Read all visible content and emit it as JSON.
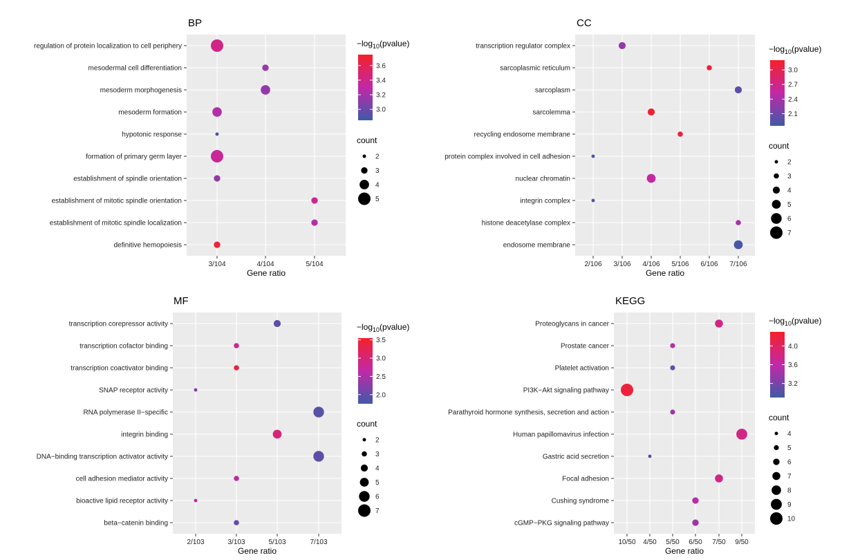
{
  "chart_data": [
    {
      "type": "scatter",
      "title": "BP",
      "xlabel": "Gene ratio",
      "x_categories": [
        "3/104",
        "4/104",
        "5/104"
      ],
      "y_categories": [
        "regulation of protein localization to cell periphery",
        "mesodermal cell differentiation",
        "mesoderm morphogenesis",
        "mesoderm formation",
        "hypotonic response",
        "formation of primary germ layer",
        "establishment of spindle orientation",
        "establishment of mitotic spindle orientation",
        "establishment of mitotic spindle localization",
        "definitive hemopoiesis"
      ],
      "points": [
        {
          "term": "regulation of protein localization to cell periphery",
          "x": "3/104",
          "count": 5,
          "value": 3.42
        },
        {
          "term": "mesodermal cell differentiation",
          "x": "4/104",
          "count": 3,
          "value": 3.15
        },
        {
          "term": "mesoderm morphogenesis",
          "x": "4/104",
          "count": 4,
          "value": 3.15
        },
        {
          "term": "mesoderm formation",
          "x": "3/104",
          "count": 4,
          "value": 3.25
        },
        {
          "term": "hypotonic response",
          "x": "3/104",
          "count": 2,
          "value": 2.9
        },
        {
          "term": "formation of primary germ layer",
          "x": "3/104",
          "count": 5,
          "value": 3.35
        },
        {
          "term": "establishment of spindle orientation",
          "x": "3/104",
          "count": 3,
          "value": 3.15
        },
        {
          "term": "establishment of mitotic spindle orientation",
          "x": "5/104",
          "count": 3,
          "value": 3.4
        },
        {
          "term": "establishment of mitotic spindle localization",
          "x": "5/104",
          "count": 3,
          "value": 3.25
        },
        {
          "term": "definitive hemopoiesis",
          "x": "3/104",
          "count": 3,
          "value": 3.7
        }
      ],
      "color_legend": {
        "title_pre": "−log",
        "title_sub": "10",
        "title_post": "(pvalue)",
        "min": 2.85,
        "max": 3.75,
        "ticks": [
          3.6,
          3.4,
          3.2,
          3.0
        ],
        "tick_labels": [
          "3.6",
          "3.4",
          "3.2",
          "3.0"
        ]
      },
      "size_legend": {
        "title": "count",
        "values": [
          2,
          3,
          4,
          5
        ],
        "labels": [
          "2",
          "3",
          "4",
          "5"
        ]
      },
      "colors": {
        "low": "#3f5aa8",
        "mid": "#c228a8",
        "high": "#f5202a"
      },
      "grid": true
    },
    {
      "type": "scatter",
      "title": "CC",
      "xlabel": "Gene ratio",
      "x_categories": [
        "2/106",
        "3/106",
        "4/106",
        "5/106",
        "6/106",
        "7/106"
      ],
      "y_categories": [
        "transcription regulator complex",
        "sarcoplasmic reticulum",
        "sarcoplasm",
        "sarcolemma",
        "recycling endosome membrane",
        "protein complex involved in cell adhesion",
        "nuclear chromatin",
        "integrin complex",
        "histone deacetylase complex",
        "endosome membrane"
      ],
      "points": [
        {
          "term": "transcription regulator complex",
          "x": "3/106",
          "count": 4,
          "value": 2.3
        },
        {
          "term": "sarcoplasmic reticulum",
          "x": "6/106",
          "count": 3,
          "value": 3.15
        },
        {
          "term": "sarcoplasm",
          "x": "7/106",
          "count": 4,
          "value": 2.0
        },
        {
          "term": "sarcolemma",
          "x": "4/106",
          "count": 4,
          "value": 3.15
        },
        {
          "term": "recycling endosome membrane",
          "x": "5/106",
          "count": 3,
          "value": 3.1
        },
        {
          "term": "protein complex involved in cell adhesion",
          "x": "2/106",
          "count": 2,
          "value": 1.95
        },
        {
          "term": "nuclear chromatin",
          "x": "4/106",
          "count": 5,
          "value": 2.55
        },
        {
          "term": "integrin complex",
          "x": "2/106",
          "count": 2,
          "value": 1.95
        },
        {
          "term": "histone deacetylase complex",
          "x": "7/106",
          "count": 3,
          "value": 2.4
        },
        {
          "term": "endosome membrane",
          "x": "7/106",
          "count": 5,
          "value": 1.9
        }
      ],
      "color_legend": {
        "title_pre": "−log",
        "title_sub": "10",
        "title_post": "(pvalue)",
        "min": 1.85,
        "max": 3.2,
        "ticks": [
          3.0,
          2.7,
          2.4,
          2.1
        ],
        "tick_labels": [
          "3.0",
          "2.7",
          "2.4",
          "2.1"
        ]
      },
      "size_legend": {
        "title": "count",
        "values": [
          2,
          3,
          4,
          5,
          6,
          7
        ],
        "labels": [
          "2",
          "3",
          "4",
          "5",
          "6",
          "7"
        ]
      },
      "colors": {
        "low": "#3f5aa8",
        "mid": "#c228a8",
        "high": "#f5202a"
      },
      "grid": true
    },
    {
      "type": "scatter",
      "title": "MF",
      "xlabel": "Gene ratio",
      "x_categories": [
        "2/103",
        "3/103",
        "5/103",
        "7/103"
      ],
      "y_categories": [
        "transcription corepressor activity",
        "transcription cofactor binding",
        "transcription coactivator binding",
        "SNAP receptor activity",
        "RNA polymerase II−specific",
        "integrin binding",
        "DNA−binding transcription activator activity",
        "cell adhesion mediator activity",
        "bioactive lipid receptor activity",
        "beta−catenin binding"
      ],
      "points": [
        {
          "term": "transcription corepressor activity",
          "x": "5/103",
          "count": 4,
          "value": 1.95
        },
        {
          "term": "transcription cofactor binding",
          "x": "3/103",
          "count": 3,
          "value": 2.8
        },
        {
          "term": "transcription coactivator binding",
          "x": "3/103",
          "count": 3,
          "value": 3.4
        },
        {
          "term": "SNAP receptor activity",
          "x": "2/103",
          "count": 2,
          "value": 2.2
        },
        {
          "term": "RNA polymerase II−specific",
          "x": "7/103",
          "count": 6,
          "value": 1.9
        },
        {
          "term": "integrin binding",
          "x": "5/103",
          "count": 5,
          "value": 3.0
        },
        {
          "term": "DNA−binding transcription activator activity",
          "x": "7/103",
          "count": 6,
          "value": 1.95
        },
        {
          "term": "cell adhesion mediator activity",
          "x": "3/103",
          "count": 3,
          "value": 2.6
        },
        {
          "term": "bioactive lipid receptor activity",
          "x": "2/103",
          "count": 2,
          "value": 2.6
        },
        {
          "term": "beta−catenin binding",
          "x": "3/103",
          "count": 3,
          "value": 2.0
        }
      ],
      "color_legend": {
        "title_pre": "−log",
        "title_sub": "10",
        "title_post": "(pvalue)",
        "min": 1.75,
        "max": 3.55,
        "ticks": [
          3.5,
          3.0,
          2.5,
          2.0
        ],
        "tick_labels": [
          "3.5",
          "3.0",
          "2.5",
          "2.0"
        ]
      },
      "size_legend": {
        "title": "count",
        "values": [
          2,
          3,
          4,
          5,
          6,
          7
        ],
        "labels": [
          "2",
          "3",
          "4",
          "5",
          "6",
          "7"
        ]
      },
      "colors": {
        "low": "#3f5aa8",
        "mid": "#c228a8",
        "high": "#f5202a"
      },
      "grid": true
    },
    {
      "type": "scatter",
      "title": "KEGG",
      "xlabel": "Gene ratio",
      "x_categories": [
        "10/50",
        "4/50",
        "5/50",
        "6/50",
        "7/50",
        "9/50"
      ],
      "y_categories": [
        "Proteoglycans in cancer",
        "Prostate cancer",
        "Platelet activation",
        "PI3K−Akt signaling pathway",
        "Parathyroid hormone synthesis, secretion and action",
        "Human papillomavirus infection",
        "Gastric acid secretion",
        "Focal adhesion",
        "Cushing syndrome",
        "cGMP−PKG signaling pathway"
      ],
      "points": [
        {
          "term": "Proteoglycans in cancer",
          "x": "7/50",
          "count": 7,
          "value": 3.8
        },
        {
          "term": "Prostate cancer",
          "x": "5/50",
          "count": 5,
          "value": 3.55
        },
        {
          "term": "Platelet activation",
          "x": "5/50",
          "count": 5,
          "value": 3.1
        },
        {
          "term": "PI3K−Akt signaling pathway",
          "x": "10/50",
          "count": 10,
          "value": 4.2
        },
        {
          "term": "Parathyroid hormone synthesis, secretion and action",
          "x": "5/50",
          "count": 5,
          "value": 3.4
        },
        {
          "term": "Human papillomavirus infection",
          "x": "9/50",
          "count": 9,
          "value": 3.8
        },
        {
          "term": "Gastric acid secretion",
          "x": "4/50",
          "count": 4,
          "value": 3.05
        },
        {
          "term": "Focal adhesion",
          "x": "7/50",
          "count": 7,
          "value": 3.8
        },
        {
          "term": "Cushing syndrome",
          "x": "6/50",
          "count": 6,
          "value": 3.55
        },
        {
          "term": "cGMP−PKG signaling pathway",
          "x": "6/50",
          "count": 6,
          "value": 3.4
        }
      ],
      "color_legend": {
        "title_pre": "−log",
        "title_sub": "10",
        "title_post": "(pvalue)",
        "min": 2.9,
        "max": 4.3,
        "ticks": [
          4.0,
          3.6,
          3.2
        ],
        "tick_labels": [
          "4.0",
          "3.6",
          "3.2"
        ]
      },
      "size_legend": {
        "title": "count",
        "values": [
          4,
          5,
          6,
          7,
          8,
          9,
          10
        ],
        "labels": [
          "4",
          "5",
          "6",
          "7",
          "8",
          "9",
          "10"
        ]
      },
      "colors": {
        "low": "#3f5aa8",
        "mid": "#c228a8",
        "high": "#f5202a"
      },
      "grid": true
    }
  ]
}
